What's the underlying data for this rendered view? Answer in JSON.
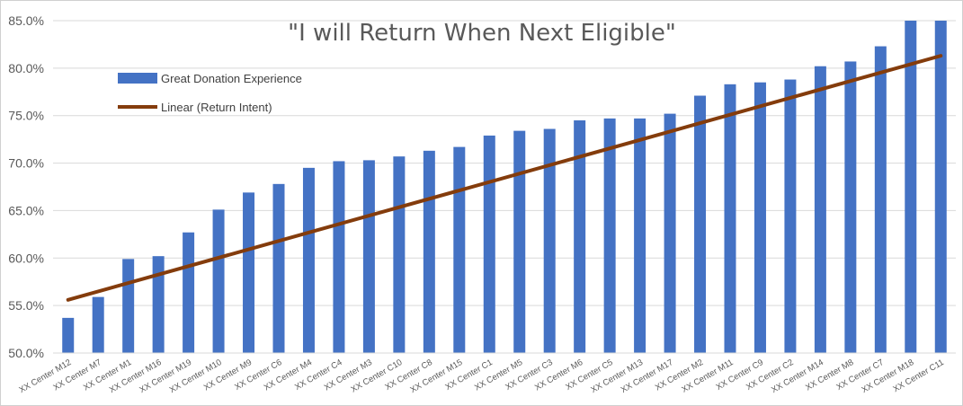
{
  "chart_data": {
    "type": "bar",
    "title": "\"I will Return When Next Eligible\"",
    "xlabel": "",
    "ylabel": "",
    "ylim": [
      0.5,
      0.85
    ],
    "yticks": [
      0.5,
      0.55,
      0.6,
      0.65,
      0.7,
      0.75,
      0.8,
      0.85
    ],
    "ytick_labels": [
      "50.0%",
      "55.0%",
      "60.0%",
      "65.0%",
      "70.0%",
      "75.0%",
      "80.0%",
      "85.0%"
    ],
    "grid": true,
    "legend_position": "top-left",
    "categories": [
      "XX Center M12",
      "XX Center M7",
      "XX Center M1",
      "XX Center M16",
      "XX Center M19",
      "XX Center M10",
      "XX Center M9",
      "XX Center C6",
      "XX Center M4",
      "XX Center C4",
      "XX Center M3",
      "XX Center C10",
      "XX Center C8",
      "XX Center M15",
      "XX Center C1",
      "XX Center M5",
      "XX Center C3",
      "XX Center M6",
      "XX Center C5",
      "XX Center M13",
      "XX Center M17",
      "XX Center M2",
      "XX Center M11",
      "XX Center C9",
      "XX Center C2",
      "XX Center M14",
      "XX Center M8",
      "XX Center C7",
      "XX Center M18",
      "XX Center C11"
    ],
    "series": [
      {
        "name": "Great Donation Experience",
        "type": "bar",
        "color": "#4472c4",
        "values": [
          0.537,
          0.559,
          0.599,
          0.602,
          0.627,
          0.651,
          0.669,
          0.678,
          0.695,
          0.702,
          0.703,
          0.707,
          0.713,
          0.717,
          0.729,
          0.734,
          0.736,
          0.745,
          0.747,
          0.747,
          0.752,
          0.771,
          0.783,
          0.785,
          0.788,
          0.802,
          0.807,
          0.823,
          0.85,
          0.85
        ]
      },
      {
        "name": "Linear (Return Intent)",
        "type": "trendline",
        "color": "#843c0c",
        "start": 0.556,
        "end": 0.813
      }
    ]
  }
}
